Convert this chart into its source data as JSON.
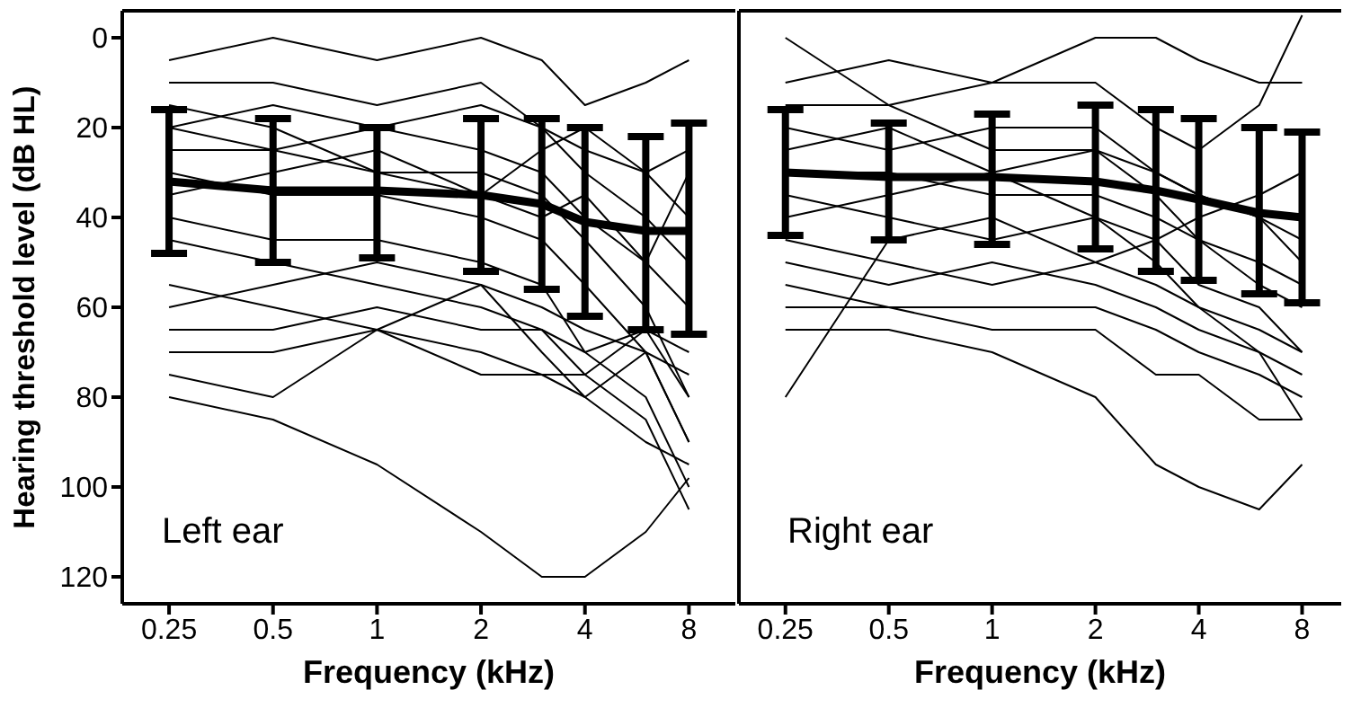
{
  "chart_data": [
    {
      "type": "line",
      "xlabel": "Frequency (kHz)",
      "ylabel": "Hearing threshold level (dB HL)",
      "annotations": [
        "Left ear"
      ],
      "log": "x",
      "xlim": [
        0.183,
        10.9
      ],
      "xticks": [
        0.25,
        0.5,
        1,
        2,
        4,
        8
      ],
      "ylim": [
        126,
        -6
      ],
      "yticks": [
        0,
        20,
        40,
        60,
        80,
        100,
        120
      ],
      "marker": "none",
      "line_style": "solid",
      "x": [
        0.25,
        0.5,
        1,
        2,
        3,
        4,
        6,
        8
      ],
      "series": [
        {
          "color": "#000000",
          "values": [
            5,
            0,
            5,
            0,
            5,
            15,
            10,
            5
          ]
        },
        {
          "color": "#000000",
          "values": [
            10,
            10,
            15,
            10,
            20,
            25,
            30,
            40
          ]
        },
        {
          "color": "#000000",
          "values": [
            20,
            15,
            20,
            25,
            30,
            40,
            50,
            60
          ]
        },
        {
          "color": "#000000",
          "values": [
            25,
            25,
            30,
            30,
            35,
            45,
            60,
            80
          ]
        },
        {
          "color": "#000000",
          "values": [
            30,
            35,
            35,
            40,
            45,
            55,
            70,
            90
          ]
        },
        {
          "color": "#000000",
          "values": [
            40,
            45,
            45,
            50,
            55,
            70,
            80,
            100
          ]
        },
        {
          "color": "#000000",
          "values": [
            45,
            50,
            55,
            60,
            65,
            75,
            85,
            105
          ]
        },
        {
          "color": "#000000",
          "values": [
            20,
            25,
            20,
            15,
            20,
            30,
            40,
            50
          ]
        },
        {
          "color": "#000000",
          "values": [
            60,
            55,
            50,
            55,
            60,
            65,
            70,
            90
          ]
        },
        {
          "color": "#000000",
          "values": [
            65,
            65,
            60,
            65,
            65,
            70,
            65,
            80
          ]
        },
        {
          "color": "#000000",
          "values": [
            55,
            60,
            65,
            55,
            70,
            80,
            70,
            75
          ]
        },
        {
          "color": "#000000",
          "values": [
            35,
            30,
            25,
            35,
            40,
            35,
            50,
            30
          ]
        },
        {
          "color": "#000000",
          "values": [
            15,
            20,
            30,
            35,
            25,
            20,
            30,
            25
          ]
        },
        {
          "color": "#000000",
          "values": [
            75,
            80,
            65,
            70,
            75,
            80,
            90,
            95
          ]
        },
        {
          "color": "#000000",
          "values": [
            80,
            85,
            95,
            110,
            120,
            120,
            110,
            98
          ]
        },
        {
          "color": "#000000",
          "values": [
            70,
            70,
            65,
            75,
            75,
            75,
            65,
            70
          ]
        },
        {
          "color": "#000000",
          "values": [
            32,
            34,
            34,
            35,
            37,
            41,
            43,
            43
          ],
          "errors": [
            [
              16,
              48
            ],
            [
              18,
              50
            ],
            [
              20,
              49
            ],
            [
              18,
              52
            ],
            [
              18,
              56
            ],
            [
              20,
              62
            ],
            [
              22,
              65
            ],
            [
              19,
              66
            ]
          ]
        }
      ]
    },
    {
      "type": "line",
      "xlabel": "Frequency (kHz)",
      "annotations": [
        "Right ear"
      ],
      "log": "x",
      "xlim": [
        0.183,
        10.4
      ],
      "xticks": [
        0.25,
        0.5,
        1,
        2,
        4,
        8
      ],
      "ylim": [
        126,
        -6
      ],
      "yticks": [
        0,
        20,
        40,
        60,
        80,
        100,
        120
      ],
      "tick_labels": "x",
      "marker": "none",
      "line_style": "solid",
      "x": [
        0.25,
        0.5,
        1,
        2,
        3,
        4,
        6,
        8
      ],
      "series": [
        {
          "color": "#000000",
          "values": [
            0,
            15,
            25,
            25,
            30,
            35,
            40,
            45
          ]
        },
        {
          "color": "#000000",
          "values": [
            10,
            5,
            10,
            10,
            20,
            25,
            15,
            -5
          ]
        },
        {
          "color": "#000000",
          "values": [
            15,
            15,
            10,
            0,
            0,
            5,
            10,
            10
          ]
        },
        {
          "color": "#000000",
          "values": [
            20,
            25,
            20,
            20,
            30,
            35,
            40,
            50
          ]
        },
        {
          "color": "#000000",
          "values": [
            30,
            30,
            35,
            35,
            40,
            45,
            50,
            55
          ]
        },
        {
          "color": "#000000",
          "values": [
            40,
            35,
            30,
            25,
            35,
            45,
            55,
            60
          ]
        },
        {
          "color": "#000000",
          "values": [
            45,
            50,
            55,
            50,
            45,
            55,
            60,
            70
          ]
        },
        {
          "color": "#000000",
          "values": [
            50,
            55,
            50,
            55,
            60,
            65,
            70,
            75
          ]
        },
        {
          "color": "#000000",
          "values": [
            60,
            60,
            60,
            60,
            65,
            70,
            75,
            80
          ]
        },
        {
          "color": "#000000",
          "values": [
            65,
            65,
            70,
            80,
            95,
            100,
            105,
            95
          ]
        },
        {
          "color": "#000000",
          "values": [
            80,
            45,
            40,
            50,
            55,
            60,
            65,
            70
          ]
        },
        {
          "color": "#000000",
          "values": [
            25,
            20,
            30,
            40,
            45,
            40,
            35,
            30
          ]
        },
        {
          "color": "#000000",
          "values": [
            35,
            40,
            45,
            40,
            50,
            60,
            70,
            85
          ]
        },
        {
          "color": "#000000",
          "values": [
            55,
            60,
            65,
            65,
            75,
            75,
            85,
            85
          ]
        },
        {
          "color": "#000000",
          "values": [
            30,
            31,
            31,
            32,
            34,
            36,
            39,
            40
          ],
          "errors": [
            [
              16,
              44
            ],
            [
              19,
              45
            ],
            [
              17,
              46
            ],
            [
              15,
              47
            ],
            [
              16,
              52
            ],
            [
              18,
              54
            ],
            [
              20,
              57
            ],
            [
              21,
              59
            ]
          ]
        }
      ]
    }
  ]
}
